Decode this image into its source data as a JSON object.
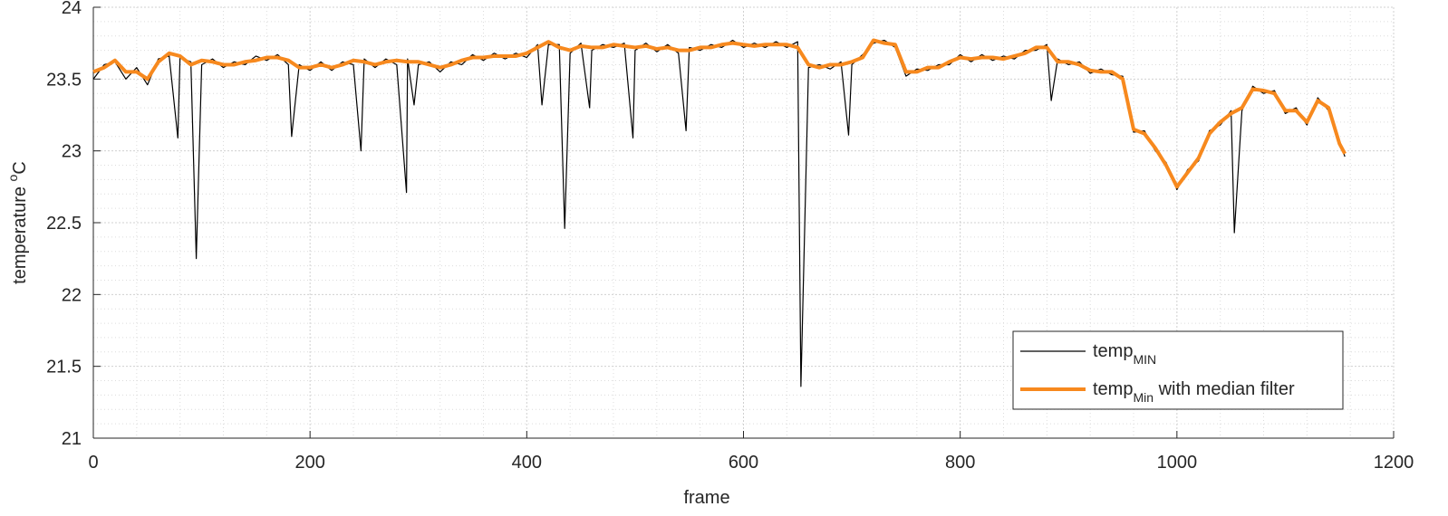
{
  "chart_data": {
    "type": "line",
    "xlabel": "frame",
    "ylabel": "temperature ",
    "ylabel_superscript": "o",
    "ylabel_suffix": "C",
    "xlim": [
      0,
      1200
    ],
    "xticks": [
      0,
      200,
      400,
      600,
      800,
      1000,
      1200
    ],
    "ylim": [
      21,
      24
    ],
    "yticks": [
      21,
      21.5,
      22,
      22.5,
      23,
      23.5,
      24
    ],
    "grid": true,
    "minor_grid": true,
    "legend": "lower right",
    "series": [
      {
        "name": "temp",
        "name_subscript": "MIN",
        "color": "#000000",
        "x": [
          0,
          10,
          20,
          30,
          40,
          50,
          60,
          70,
          78,
          80,
          90,
          95,
          100,
          110,
          120,
          130,
          140,
          150,
          160,
          170,
          180,
          183,
          190,
          200,
          210,
          220,
          230,
          240,
          247,
          250,
          260,
          270,
          280,
          289,
          290,
          296,
          300,
          310,
          320,
          330,
          340,
          350,
          360,
          370,
          380,
          390,
          400,
          410,
          414,
          420,
          430,
          435,
          440,
          450,
          458,
          460,
          470,
          480,
          490,
          498,
          500,
          510,
          520,
          530,
          540,
          547,
          550,
          560,
          570,
          580,
          590,
          600,
          610,
          620,
          630,
          640,
          650,
          653,
          660,
          670,
          680,
          690,
          697,
          700,
          710,
          720,
          730,
          740,
          750,
          760,
          770,
          780,
          790,
          800,
          810,
          820,
          830,
          840,
          850,
          860,
          870,
          880,
          884,
          890,
          900,
          910,
          920,
          930,
          940,
          950,
          960,
          970,
          980,
          990,
          1000,
          1010,
          1020,
          1030,
          1040,
          1050,
          1053,
          1060,
          1070,
          1080,
          1090,
          1100,
          1110,
          1120,
          1130,
          1140,
          1150,
          1155
        ],
        "values": [
          23.5,
          23.6,
          23.62,
          23.5,
          23.58,
          23.46,
          23.64,
          23.66,
          23.09,
          23.65,
          23.62,
          22.25,
          23.6,
          23.64,
          23.58,
          23.62,
          23.6,
          23.66,
          23.63,
          23.67,
          23.6,
          23.1,
          23.6,
          23.56,
          23.62,
          23.56,
          23.62,
          23.6,
          23.0,
          23.64,
          23.58,
          23.64,
          23.6,
          22.71,
          23.64,
          23.32,
          23.6,
          23.62,
          23.55,
          23.62,
          23.6,
          23.67,
          23.63,
          23.68,
          23.64,
          23.68,
          23.65,
          23.74,
          23.32,
          23.74,
          23.74,
          22.46,
          23.68,
          23.75,
          23.3,
          23.7,
          23.74,
          23.72,
          23.75,
          23.09,
          23.7,
          23.75,
          23.69,
          23.74,
          23.68,
          23.14,
          23.72,
          23.7,
          23.74,
          23.72,
          23.77,
          23.72,
          23.75,
          23.72,
          23.76,
          23.72,
          23.76,
          21.36,
          23.58,
          23.6,
          23.57,
          23.62,
          23.11,
          23.6,
          23.67,
          23.75,
          23.77,
          23.72,
          23.52,
          23.57,
          23.56,
          23.6,
          23.6,
          23.67,
          23.62,
          23.67,
          23.63,
          23.66,
          23.64,
          23.7,
          23.7,
          23.74,
          23.35,
          23.64,
          23.6,
          23.62,
          23.54,
          23.57,
          23.53,
          23.52,
          23.13,
          23.14,
          23.0,
          22.92,
          22.73,
          22.87,
          22.93,
          23.14,
          23.18,
          23.28,
          22.43,
          23.28,
          23.45,
          23.4,
          23.42,
          23.26,
          23.3,
          23.18,
          23.37,
          23.28,
          23.07,
          22.96
        ]
      },
      {
        "name": "temp",
        "name_subscript": "Min",
        "name_suffix": " with median filter",
        "color": "#f7891e",
        "x": [
          0,
          10,
          20,
          30,
          40,
          50,
          60,
          70,
          80,
          90,
          100,
          110,
          120,
          130,
          140,
          150,
          160,
          170,
          180,
          190,
          200,
          210,
          220,
          230,
          240,
          250,
          260,
          270,
          280,
          290,
          300,
          310,
          320,
          330,
          340,
          350,
          360,
          370,
          380,
          390,
          400,
          410,
          420,
          430,
          440,
          450,
          460,
          470,
          480,
          490,
          500,
          510,
          520,
          530,
          540,
          550,
          560,
          570,
          580,
          590,
          600,
          610,
          620,
          630,
          640,
          650,
          660,
          670,
          680,
          690,
          700,
          710,
          720,
          730,
          740,
          750,
          760,
          770,
          780,
          790,
          800,
          810,
          820,
          830,
          840,
          850,
          860,
          870,
          880,
          890,
          900,
          910,
          920,
          930,
          940,
          950,
          960,
          970,
          980,
          990,
          1000,
          1010,
          1020,
          1030,
          1040,
          1050,
          1060,
          1070,
          1080,
          1090,
          1100,
          1110,
          1120,
          1130,
          1140,
          1150,
          1155
        ],
        "values": [
          23.55,
          23.58,
          23.63,
          23.55,
          23.55,
          23.5,
          23.62,
          23.68,
          23.66,
          23.6,
          23.63,
          23.62,
          23.6,
          23.6,
          23.62,
          23.63,
          23.65,
          23.65,
          23.63,
          23.58,
          23.58,
          23.6,
          23.58,
          23.6,
          23.63,
          23.62,
          23.6,
          23.62,
          23.63,
          23.62,
          23.62,
          23.6,
          23.58,
          23.6,
          23.63,
          23.65,
          23.65,
          23.66,
          23.66,
          23.66,
          23.68,
          23.72,
          23.76,
          23.72,
          23.7,
          23.73,
          23.72,
          23.72,
          23.74,
          23.73,
          23.72,
          23.73,
          23.71,
          23.72,
          23.7,
          23.7,
          23.72,
          23.72,
          23.74,
          23.75,
          23.74,
          23.73,
          23.74,
          23.74,
          23.74,
          23.72,
          23.6,
          23.58,
          23.6,
          23.6,
          23.62,
          23.65,
          23.77,
          23.75,
          23.74,
          23.55,
          23.55,
          23.58,
          23.58,
          23.62,
          23.65,
          23.64,
          23.65,
          23.65,
          23.64,
          23.66,
          23.68,
          23.72,
          23.72,
          23.62,
          23.62,
          23.6,
          23.56,
          23.55,
          23.55,
          23.5,
          23.15,
          23.12,
          23.02,
          22.9,
          22.75,
          22.85,
          22.95,
          23.12,
          23.2,
          23.26,
          23.3,
          23.43,
          23.42,
          23.4,
          23.28,
          23.28,
          23.2,
          23.35,
          23.3,
          23.05,
          22.98
        ]
      }
    ]
  }
}
